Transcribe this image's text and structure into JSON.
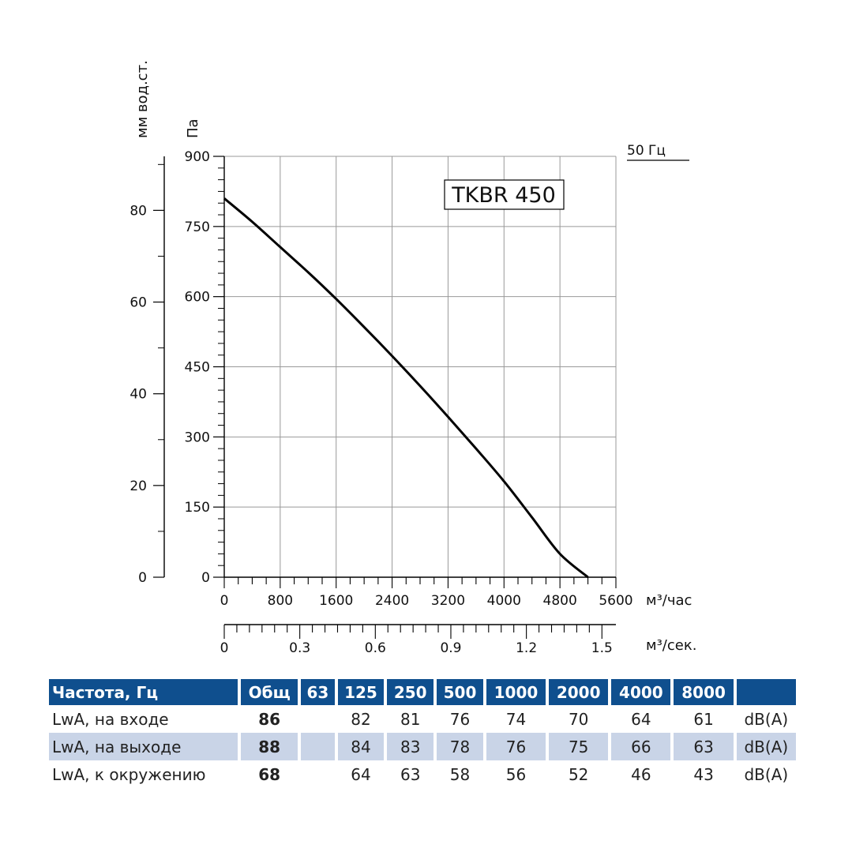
{
  "chart_data": {
    "type": "line",
    "model_label": "TKBR 450",
    "frequency_label": "50 Гц",
    "y_left_outer_label": "мм вод.ст.",
    "y_left_inner_label": "Па",
    "x_label_flow_hour": "м³/час",
    "x_label_flow_sec": "м³/сек.",
    "x_ticks_hour": [
      "0",
      "800",
      "1600",
      "2400",
      "3200",
      "4000",
      "4800",
      "5600"
    ],
    "x_ticks_sec": [
      "0",
      "0.3",
      "0.6",
      "0.9",
      "1.2",
      "1.5"
    ],
    "y_ticks_pa": [
      "0",
      "150",
      "300",
      "450",
      "600",
      "750",
      "900"
    ],
    "y_ticks_mm": [
      "0",
      "20",
      "40",
      "60",
      "80"
    ],
    "xlim_hour": [
      0,
      5600
    ],
    "ylim_pa": [
      0,
      900
    ],
    "grid": true,
    "series": [
      {
        "x": [
          0,
          400,
          800,
          1200,
          1600,
          2000,
          2400,
          2800,
          3200,
          3600,
          4000,
          4400,
          4800,
          5200
        ],
        "y": [
          810,
          760,
          706,
          652,
          595,
          535,
          473,
          409,
          343,
          275,
          205,
          128,
          50,
          0
        ]
      }
    ]
  },
  "noise_table": {
    "headers": [
      "Частота, Гц",
      "Общ",
      "63",
      "125",
      "250",
      "500",
      "1000",
      "2000",
      "4000",
      "8000",
      ""
    ],
    "rows": [
      {
        "label": "LwA, на входе",
        "total": "86",
        "values": [
          "",
          "82",
          "81",
          "76",
          "74",
          "70",
          "64",
          "61"
        ],
        "unit": "dB(A)"
      },
      {
        "label": "LwA, на выходе",
        "total": "88",
        "values": [
          "",
          "84",
          "83",
          "78",
          "76",
          "75",
          "66",
          "63"
        ],
        "unit": "dB(A)"
      },
      {
        "label": "LwA, к окружению",
        "total": "68",
        "values": [
          "",
          "64",
          "63",
          "58",
          "56",
          "52",
          "46",
          "43"
        ],
        "unit": "dB(A)"
      }
    ]
  }
}
